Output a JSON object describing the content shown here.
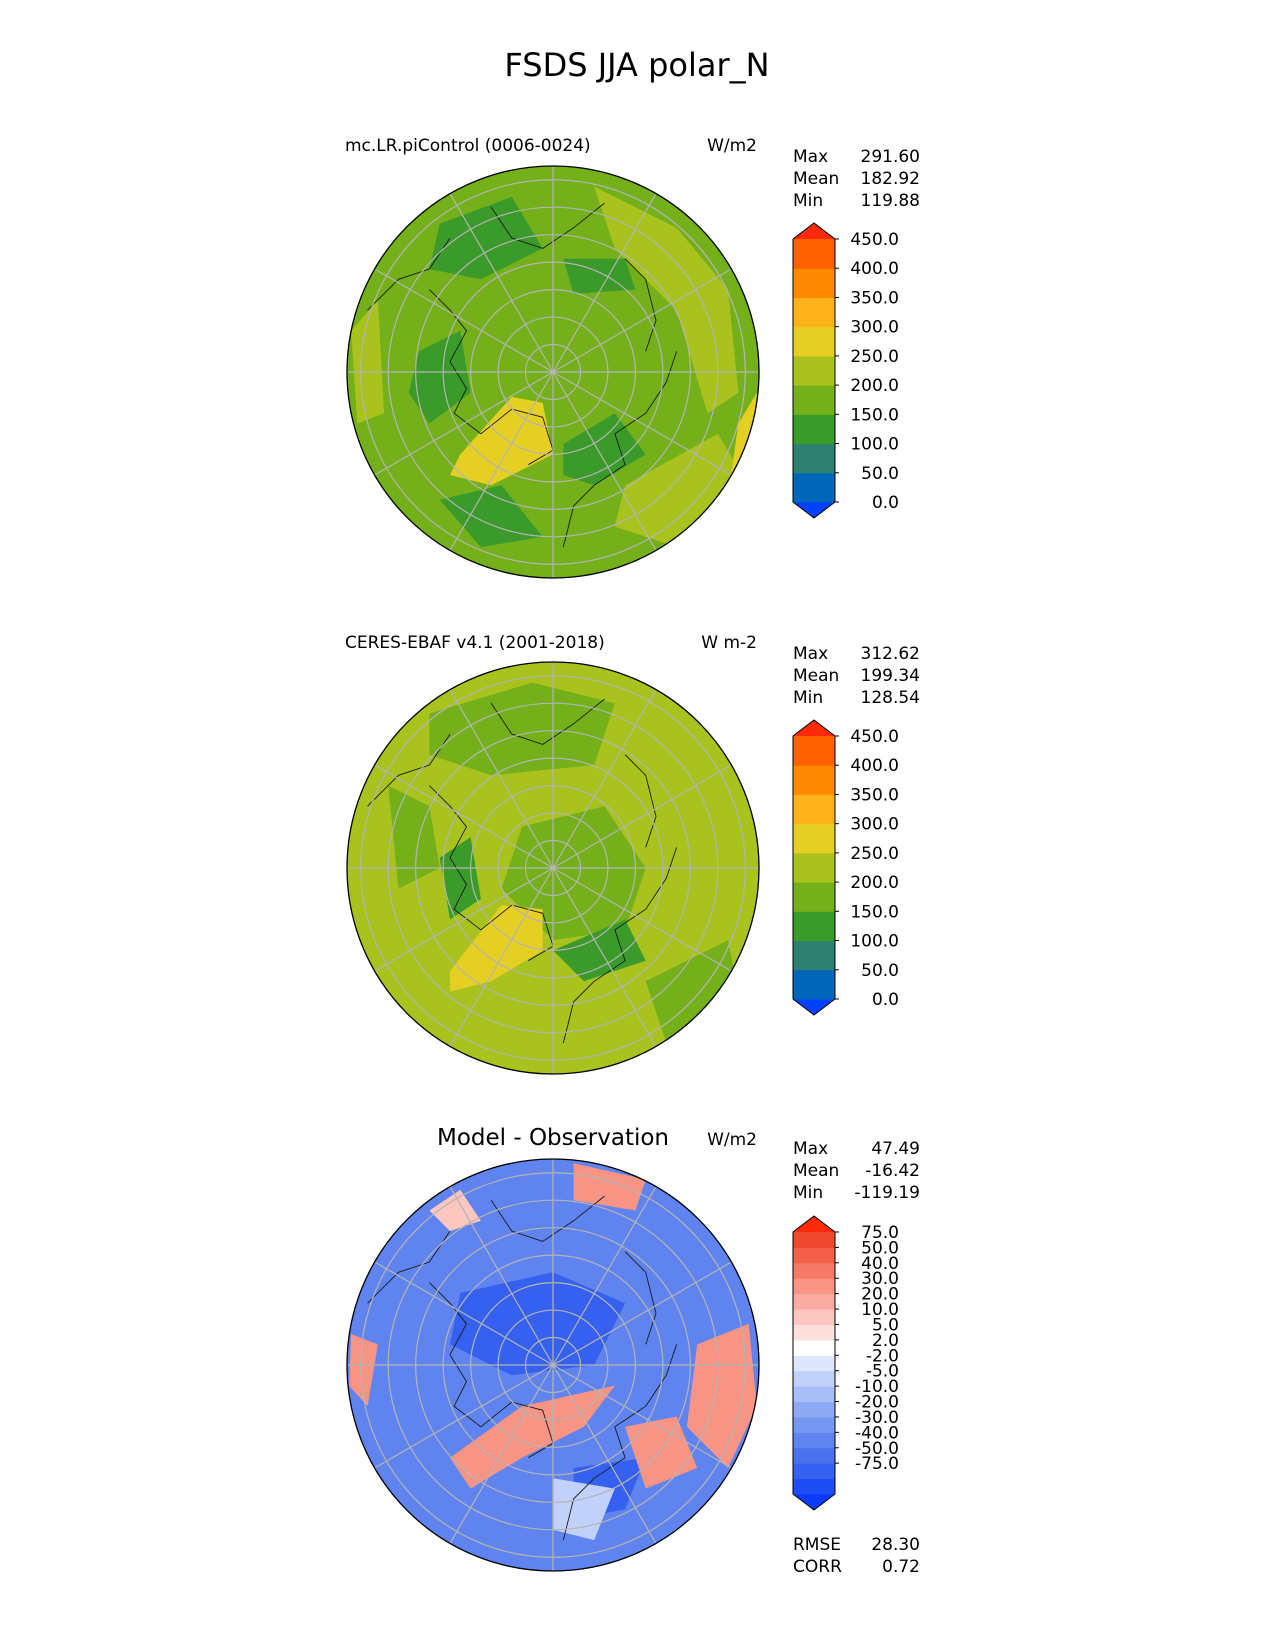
{
  "page_title": "FSDS JJA polar_N",
  "chart_data": [
    {
      "type": "heatmap",
      "projection": "north polar stereographic",
      "title": "mc.LR.piControl (0006-0024)",
      "units": "W/m2",
      "stats": {
        "max_label": "Max",
        "max": "291.60",
        "mean_label": "Mean",
        "mean": "182.92",
        "min_label": "Min",
        "min": "119.88"
      },
      "colorbar": {
        "ticks": [
          "450.0",
          "400.0",
          "350.0",
          "300.0",
          "250.0",
          "200.0",
          "150.0",
          "100.0",
          "50.0",
          "0.0"
        ],
        "colors": [
          "#0040ff",
          "#0066b8",
          "#2e8070",
          "#3a9a2a",
          "#74b01a",
          "#a9c21e",
          "#e6cf23",
          "#ffb319",
          "#ff8a00",
          "#ff6000",
          "#ff2a0a"
        ]
      },
      "field_levels": [
        "#74b01a",
        "#a9c21e",
        "#3a9a2a",
        "#e6cf23"
      ]
    },
    {
      "type": "heatmap",
      "projection": "north polar stereographic",
      "title": "CERES-EBAF v4.1 (2001-2018)",
      "units": "W m-2",
      "stats": {
        "max_label": "Max",
        "max": "312.62",
        "mean_label": "Mean",
        "mean": "199.34",
        "min_label": "Min",
        "min": "128.54"
      },
      "colorbar": {
        "ticks": [
          "450.0",
          "400.0",
          "350.0",
          "300.0",
          "250.0",
          "200.0",
          "150.0",
          "100.0",
          "50.0",
          "0.0"
        ],
        "colors": [
          "#0040ff",
          "#0066b8",
          "#2e8070",
          "#3a9a2a",
          "#74b01a",
          "#a9c21e",
          "#e6cf23",
          "#ffb319",
          "#ff8a00",
          "#ff6000",
          "#ff2a0a"
        ]
      },
      "field_levels": [
        "#a9c21e",
        "#74b01a",
        "#3a9a2a",
        "#e6cf23"
      ]
    },
    {
      "type": "heatmap",
      "projection": "north polar stereographic",
      "title": "Model - Observation",
      "units": "W/m2",
      "stats": {
        "max_label": "Max",
        "max": "47.49",
        "mean_label": "Mean",
        "mean": "-16.42",
        "min_label": "Min",
        "min": "-119.19"
      },
      "colorbar": {
        "ticks": [
          "75.0",
          "50.0",
          "40.0",
          "30.0",
          "20.0",
          "10.0",
          "5.0",
          "2.0",
          "-2.0",
          "-5.0",
          "-10.0",
          "-20.0",
          "-30.0",
          "-40.0",
          "-50.0",
          "-75.0"
        ],
        "colors": [
          "#0a3cff",
          "#1e4df5",
          "#3560f0",
          "#4a72ee",
          "#5f84ef",
          "#7697f2",
          "#8eaaf5",
          "#a8bef7",
          "#c2d1fa",
          "#dde6fc",
          "#ffffff",
          "#fde0dc",
          "#fbc7bf",
          "#f9ada2",
          "#f79484",
          "#f57a67",
          "#f3614b",
          "#f0472f",
          "#ff2a0a"
        ]
      },
      "field_levels": [
        "#5f84ef",
        "#3560f0",
        "#f79484",
        "#c2d1fa",
        "#fbc7bf"
      ]
    }
  ],
  "diff_metrics": {
    "rmse_label": "RMSE",
    "rmse": "28.30",
    "corr_label": "CORR",
    "corr": "0.72"
  }
}
